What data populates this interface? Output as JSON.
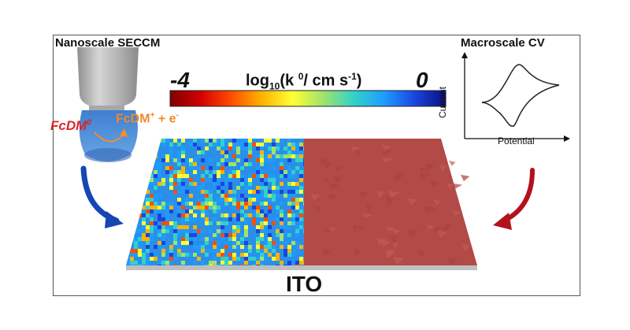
{
  "labels": {
    "left_title": "Nanoscale SECCM",
    "right_title": "Macroscale CV",
    "colorbar_min": "-4",
    "colorbar_max": "0",
    "colorbar_label_prefix": "log",
    "colorbar_label_sub": "10",
    "colorbar_label_mid": "(k ",
    "colorbar_label_sup": "0",
    "colorbar_label_unit": "/ cm s",
    "colorbar_label_unit_sup": "-1",
    "colorbar_label_end": ")",
    "reactant": "FcDM",
    "reactant_sup": "0",
    "product": "FcDM",
    "product_sup": "+",
    "product_tail": " + e",
    "electron_sup": "-",
    "substrate": "ITO",
    "cv_y_axis": "Current",
    "cv_x_axis": "Potential"
  },
  "colors": {
    "colormap": [
      "#7f0000",
      "#d40000",
      "#ff4d00",
      "#ffb300",
      "#ffff33",
      "#9fe36b",
      "#33d1c9",
      "#1f9bff",
      "#1a44e0",
      "#0a0f7a"
    ],
    "left_arrow": "#1646b3",
    "right_arrow": "#b3111b",
    "macro_surface": "#b24a47",
    "substrate_edge": "#bfbfbf",
    "pipette": "#b5b5b5",
    "droplet": "#4f8ed6",
    "reactant": "#d9262b",
    "product": "#ef8a2a"
  }
}
